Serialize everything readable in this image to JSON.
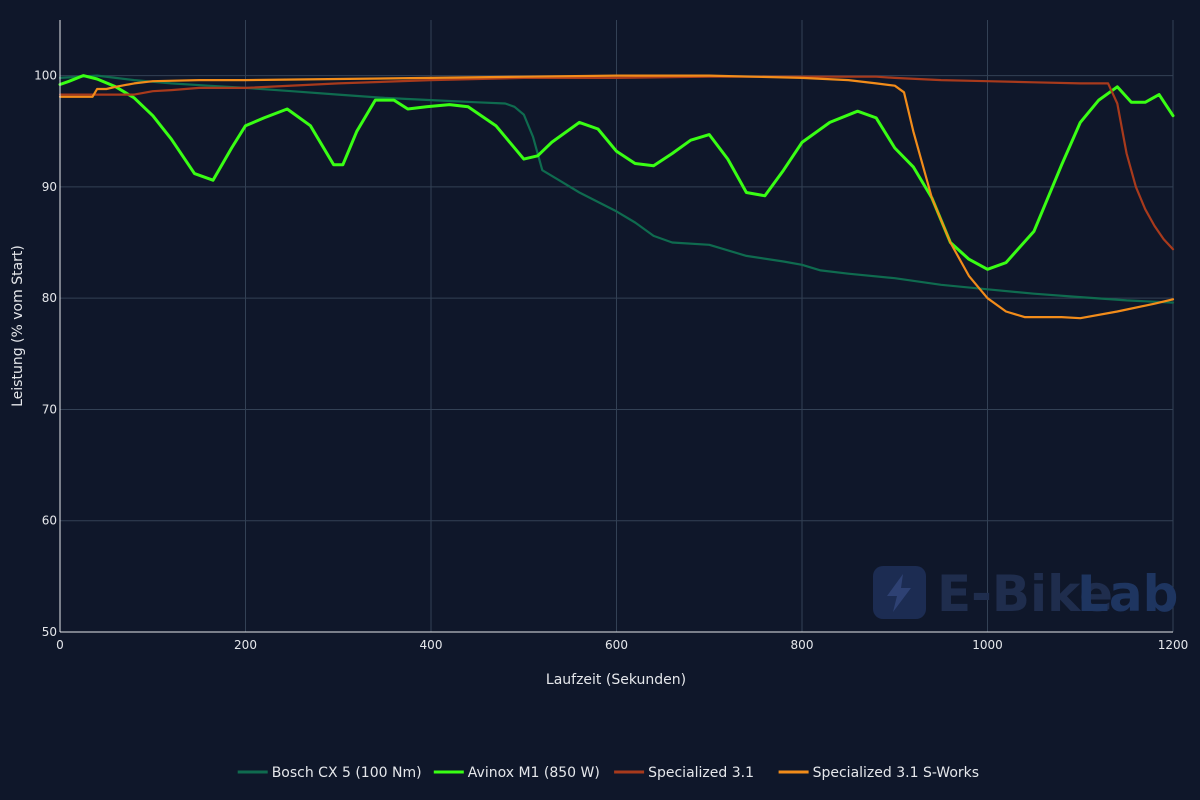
{
  "colors": {
    "background": "#0f172a",
    "grid": "#334155",
    "text": "#e5e7eb"
  },
  "watermark": {
    "brand_a": "E-Bike",
    "brand_b": "Lab",
    "icon": "lightning-bolt-icon"
  },
  "chart_data": {
    "type": "line",
    "xlabel": "Laufzeit (Sekunden)",
    "ylabel": "Leistung (% vom Start)",
    "xlim": [
      0,
      1200
    ],
    "ylim": [
      50,
      105
    ],
    "x_ticks": [
      0,
      200,
      400,
      600,
      800,
      1000,
      1200
    ],
    "y_ticks": [
      50,
      60,
      70,
      80,
      90,
      100
    ],
    "grid": true,
    "legend_position": "bottom",
    "series": [
      {
        "name": "Bosch CX 5 (100 Nm)",
        "color": "#0f6b4f",
        "x": [
          0,
          40,
          80,
          120,
          160,
          200,
          250,
          300,
          350,
          400,
          450,
          480,
          490,
          500,
          510,
          520,
          540,
          560,
          600,
          620,
          640,
          660,
          700,
          740,
          780,
          800,
          820,
          850,
          900,
          950,
          1000,
          1050,
          1100,
          1150,
          1200
        ],
        "y": [
          99.8,
          100,
          99.6,
          99.3,
          99.1,
          98.9,
          98.6,
          98.3,
          98.0,
          97.8,
          97.6,
          97.5,
          97.2,
          96.5,
          94.5,
          91.5,
          90.5,
          89.5,
          87.8,
          86.8,
          85.6,
          85.0,
          84.8,
          83.8,
          83.3,
          83.0,
          82.5,
          82.2,
          81.8,
          81.2,
          80.8,
          80.4,
          80.1,
          79.8,
          79.6
        ]
      },
      {
        "name": "Avinox M1 (850 W)",
        "color": "#39ff14",
        "x": [
          0,
          10,
          25,
          40,
          60,
          80,
          100,
          120,
          145,
          165,
          185,
          200,
          220,
          245,
          270,
          295,
          305,
          320,
          340,
          360,
          375,
          395,
          420,
          440,
          470,
          480,
          500,
          515,
          530,
          560,
          580,
          600,
          620,
          640,
          660,
          680,
          700,
          720,
          740,
          760,
          780,
          800,
          830,
          860,
          880,
          900,
          920,
          940,
          960,
          980,
          1000,
          1020,
          1050,
          1080,
          1100,
          1120,
          1140,
          1155,
          1170,
          1185,
          1200
        ],
        "y": [
          99.2,
          99.5,
          100.0,
          99.7,
          99.0,
          98.0,
          96.4,
          94.3,
          91.2,
          90.6,
          93.5,
          95.5,
          96.2,
          97.0,
          95.5,
          92.0,
          92.0,
          95.0,
          97.8,
          97.8,
          97.0,
          97.2,
          97.4,
          97.2,
          95.5,
          94.5,
          92.5,
          92.8,
          94.0,
          95.8,
          95.2,
          93.2,
          92.1,
          91.9,
          93.0,
          94.2,
          94.7,
          92.5,
          89.5,
          89.2,
          91.5,
          94.0,
          95.8,
          96.8,
          96.2,
          93.5,
          91.8,
          89.0,
          85.0,
          83.5,
          82.6,
          83.2,
          86.0,
          92.0,
          95.8,
          97.8,
          99.0,
          97.6,
          97.6,
          98.3,
          96.4
        ]
      },
      {
        "name": "Specialized 3.1",
        "color": "#a83a1c",
        "x": [
          0,
          30,
          50,
          80,
          100,
          120,
          150,
          200,
          300,
          400,
          500,
          600,
          700,
          800,
          850,
          880,
          900,
          950,
          1000,
          1050,
          1100,
          1130,
          1140,
          1150,
          1160,
          1170,
          1180,
          1190,
          1200
        ],
        "y": [
          98.3,
          98.3,
          98.3,
          98.3,
          98.6,
          98.7,
          98.9,
          98.9,
          99.3,
          99.6,
          99.8,
          99.8,
          99.9,
          99.9,
          99.9,
          99.9,
          99.8,
          99.6,
          99.5,
          99.4,
          99.3,
          99.3,
          97.5,
          93.0,
          90.0,
          88.0,
          86.5,
          85.3,
          84.4
        ]
      },
      {
        "name": "Specialized 3.1 S-Works",
        "color": "#f28c1a",
        "x": [
          0,
          35,
          40,
          50,
          60,
          80,
          100,
          150,
          200,
          300,
          400,
          500,
          600,
          700,
          800,
          850,
          880,
          900,
          910,
          920,
          940,
          960,
          980,
          1000,
          1020,
          1040,
          1060,
          1080,
          1100,
          1140,
          1180,
          1200
        ],
        "y": [
          98.1,
          98.1,
          98.8,
          98.8,
          99.0,
          99.3,
          99.5,
          99.6,
          99.6,
          99.7,
          99.8,
          99.9,
          100.0,
          100.0,
          99.8,
          99.6,
          99.3,
          99.1,
          98.5,
          95.0,
          89.0,
          85.0,
          82.0,
          80.0,
          78.8,
          78.3,
          78.3,
          78.3,
          78.2,
          78.8,
          79.5,
          79.9
        ]
      }
    ]
  }
}
